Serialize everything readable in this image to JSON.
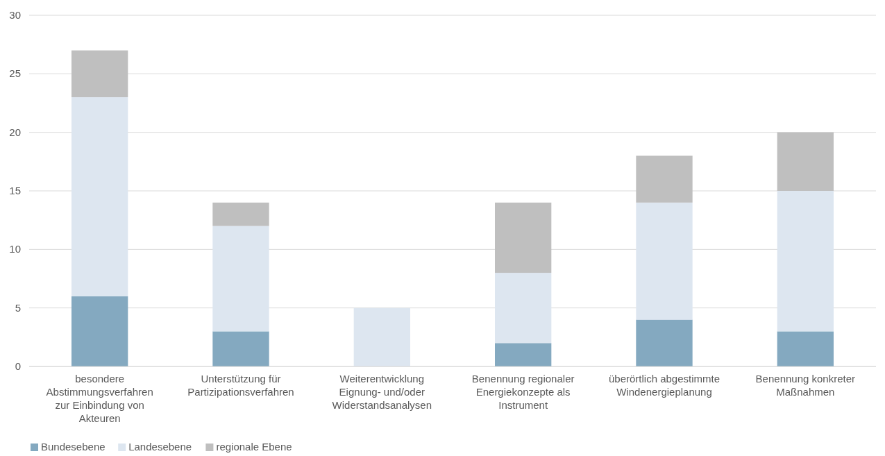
{
  "chart_data": {
    "type": "bar",
    "stacked": true,
    "categories": [
      "besondere Abstimmungsverfahren zur Einbindung von Akteuren",
      "Unterstützung für Partizipationsverfahren",
      "Weiterentwicklung Eignung- und/oder Widerstandsanalysen",
      "Benennung regionaler Energiekonzepte als Instrument",
      "überörtlich abgestimmte Windenergieplanung",
      "Benennung konkreter Maßnahmen"
    ],
    "series": [
      {
        "name": "Bundesebene",
        "color": "#84a9c0",
        "values": [
          6,
          3,
          0,
          2,
          4,
          3
        ]
      },
      {
        "name": "Landesebene",
        "color": "#dde6f0",
        "values": [
          17,
          9,
          5,
          6,
          10,
          12
        ]
      },
      {
        "name": "regionale Ebene",
        "color": "#bfbfbf",
        "values": [
          4,
          2,
          0,
          6,
          4,
          5
        ]
      }
    ],
    "ylim": [
      0,
      30
    ],
    "yticks": [
      0,
      5,
      10,
      15,
      20,
      25,
      30
    ],
    "grid": "y",
    "legend": "bottom"
  }
}
